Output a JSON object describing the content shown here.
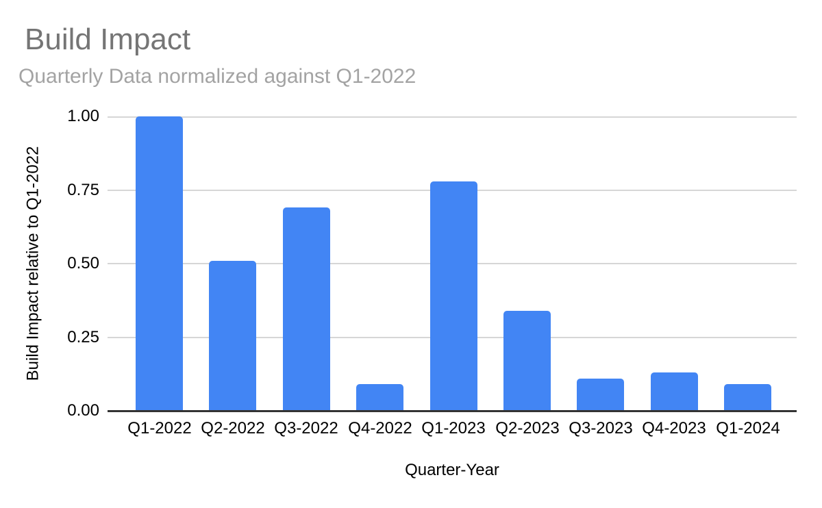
{
  "header": {
    "title": "Build Impact",
    "subtitle": "Quarterly Data normalized against Q1-2022",
    "title_color": "#757575",
    "subtitle_color": "#a3a3a3"
  },
  "chart_data": {
    "type": "bar",
    "title": "Build Impact",
    "subtitle": "Quarterly Data normalized against Q1-2022",
    "categories": [
      "Q1-2022",
      "Q2-2022",
      "Q3-2022",
      "Q4-2022",
      "Q1-2023",
      "Q2-2023",
      "Q3-2023",
      "Q4-2023",
      "Q1-2024"
    ],
    "values": [
      1.0,
      0.51,
      0.69,
      0.09,
      0.78,
      0.34,
      0.11,
      0.13,
      0.09
    ],
    "xlabel": "Quarter-Year",
    "ylabel": "Build Impact relative to Q1-2022",
    "ylim": [
      0,
      1.0
    ],
    "yticks": [
      0,
      0.25,
      0.5,
      0.75,
      1.0
    ],
    "ytick_labels": [
      "0.00",
      "0.25",
      "0.50",
      "0.75",
      "1.00"
    ],
    "bar_color": "#4285f4",
    "gridline_color": "#d6d6d6",
    "axis_line_color": "#333333",
    "grid": true,
    "legend": "none",
    "background": "#ffffff"
  }
}
